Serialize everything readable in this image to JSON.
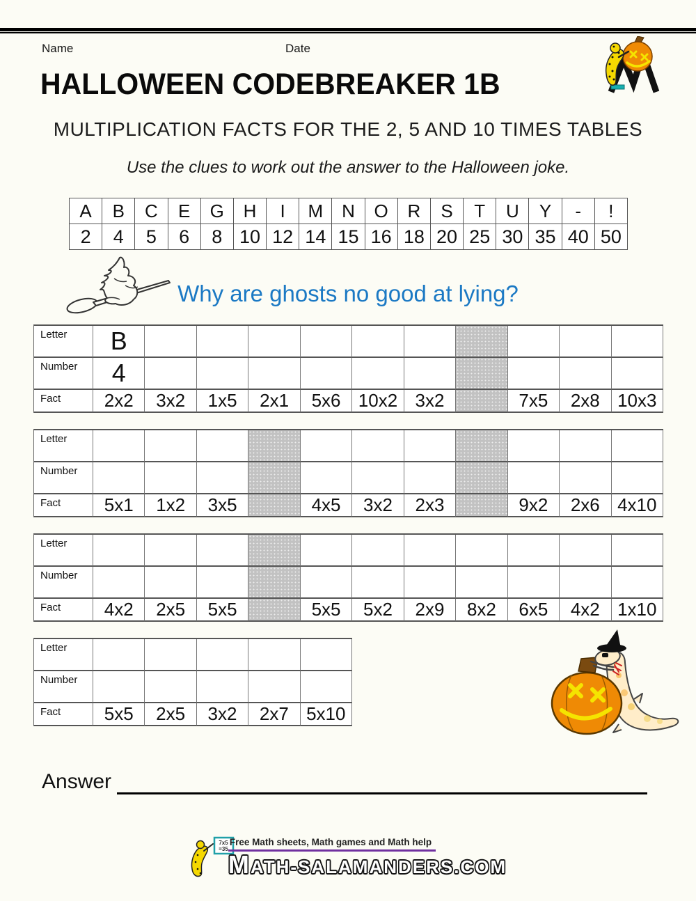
{
  "page": {
    "name_label": "Name",
    "date_label": "Date",
    "title": "HALLOWEEN CODEBREAKER 1B",
    "subtitle": "MULTIPLICATION FACTS FOR THE 2, 5 AND 10 TIMES TABLES",
    "instruction": "Use the clues to work out the answer to the Halloween joke.",
    "question": "Why are ghosts no good at lying?",
    "answer_label": "Answer"
  },
  "colors": {
    "question_blue": "#1b79c4",
    "shaded_cell": "#c2c2c2",
    "footer_underline": "#7030a0",
    "pumpkin_orange": "#ef8a05"
  },
  "code_table": {
    "letters": [
      "A",
      "B",
      "C",
      "E",
      "G",
      "H",
      "I",
      "M",
      "N",
      "O",
      "R",
      "S",
      "T",
      "U",
      "Y",
      "-",
      "!"
    ],
    "numbers": [
      "2",
      "4",
      "5",
      "6",
      "8",
      "10",
      "12",
      "14",
      "15",
      "16",
      "18",
      "20",
      "25",
      "30",
      "35",
      "40",
      "50"
    ]
  },
  "puzzle_tables": [
    {
      "row_labels": [
        "Letter",
        "Number",
        "Fact"
      ],
      "columns": [
        {
          "letter": "B",
          "number": "4",
          "fact": "2x2",
          "shaded": false
        },
        {
          "letter": "",
          "number": "",
          "fact": "3x2",
          "shaded": false
        },
        {
          "letter": "",
          "number": "",
          "fact": "1x5",
          "shaded": false
        },
        {
          "letter": "",
          "number": "",
          "fact": "2x1",
          "shaded": false
        },
        {
          "letter": "",
          "number": "",
          "fact": "5x6",
          "shaded": false
        },
        {
          "letter": "",
          "number": "",
          "fact": "10x2",
          "shaded": false
        },
        {
          "letter": "",
          "number": "",
          "fact": "3x2",
          "shaded": false
        },
        {
          "letter": "",
          "number": "",
          "fact": "",
          "shaded": true
        },
        {
          "letter": "",
          "number": "",
          "fact": "7x5",
          "shaded": false
        },
        {
          "letter": "",
          "number": "",
          "fact": "2x8",
          "shaded": false
        },
        {
          "letter": "",
          "number": "",
          "fact": "10x3",
          "shaded": false
        }
      ]
    },
    {
      "row_labels": [
        "Letter",
        "Number",
        "Fact"
      ],
      "columns": [
        {
          "letter": "",
          "number": "",
          "fact": "5x1",
          "shaded": false
        },
        {
          "letter": "",
          "number": "",
          "fact": "1x2",
          "shaded": false
        },
        {
          "letter": "",
          "number": "",
          "fact": "3x5",
          "shaded": false
        },
        {
          "letter": "",
          "number": "",
          "fact": "",
          "shaded": true
        },
        {
          "letter": "",
          "number": "",
          "fact": "4x5",
          "shaded": false
        },
        {
          "letter": "",
          "number": "",
          "fact": "3x2",
          "shaded": false
        },
        {
          "letter": "",
          "number": "",
          "fact": "2x3",
          "shaded": false
        },
        {
          "letter": "",
          "number": "",
          "fact": "",
          "shaded": true
        },
        {
          "letter": "",
          "number": "",
          "fact": "9x2",
          "shaded": false
        },
        {
          "letter": "",
          "number": "",
          "fact": "2x6",
          "shaded": false
        },
        {
          "letter": "",
          "number": "",
          "fact": "4x10",
          "shaded": false
        }
      ]
    },
    {
      "row_labels": [
        "Letter",
        "Number",
        "Fact"
      ],
      "columns": [
        {
          "letter": "",
          "number": "",
          "fact": "4x2",
          "shaded": false
        },
        {
          "letter": "",
          "number": "",
          "fact": "2x5",
          "shaded": false
        },
        {
          "letter": "",
          "number": "",
          "fact": "5x5",
          "shaded": false
        },
        {
          "letter": "",
          "number": "",
          "fact": "",
          "shaded": true
        },
        {
          "letter": "",
          "number": "",
          "fact": "5x5",
          "shaded": false
        },
        {
          "letter": "",
          "number": "",
          "fact": "5x2",
          "shaded": false
        },
        {
          "letter": "",
          "number": "",
          "fact": "2x9",
          "shaded": false
        },
        {
          "letter": "",
          "number": "",
          "fact": "8x2",
          "shaded": false
        },
        {
          "letter": "",
          "number": "",
          "fact": "6x5",
          "shaded": false
        },
        {
          "letter": "",
          "number": "",
          "fact": "4x2",
          "shaded": false
        },
        {
          "letter": "",
          "number": "",
          "fact": "1x10",
          "shaded": false
        }
      ]
    },
    {
      "row_labels": [
        "Letter",
        "Number",
        "Fact"
      ],
      "columns": [
        {
          "letter": "",
          "number": "",
          "fact": "5x5",
          "shaded": false
        },
        {
          "letter": "",
          "number": "",
          "fact": "2x5",
          "shaded": false
        },
        {
          "letter": "",
          "number": "",
          "fact": "3x2",
          "shaded": false
        },
        {
          "letter": "",
          "number": "",
          "fact": "2x7",
          "shaded": false
        },
        {
          "letter": "",
          "number": "",
          "fact": "5x10",
          "shaded": false
        }
      ]
    }
  ],
  "footer": {
    "tagline": "Free Math sheets, Math games and Math help",
    "board_line1": "7x5",
    "board_line2": "=35",
    "wordmark_m": "M",
    "wordmark_rest": "ATH-SALAMANDERS.COM"
  }
}
